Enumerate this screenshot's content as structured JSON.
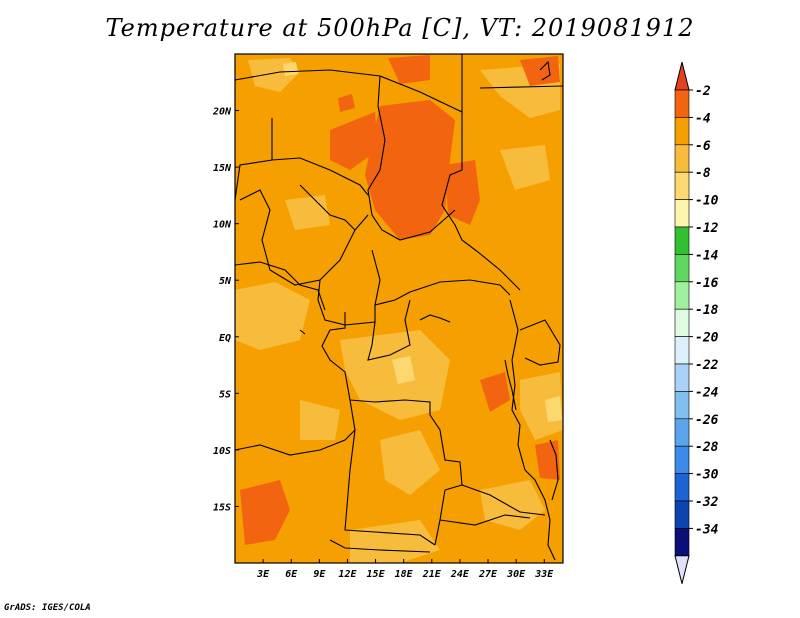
{
  "title": "Temperature at 500hPa [C], VT: 2019081912",
  "credit": "GrADS: IGES/COLA",
  "map": {
    "lon_range": [
      0,
      35
    ],
    "lat_range": [
      -20,
      25
    ],
    "lon_ticks": [
      {
        "value": 3,
        "label": "3E"
      },
      {
        "value": 6,
        "label": "6E"
      },
      {
        "value": 9,
        "label": "9E"
      },
      {
        "value": 12,
        "label": "12E"
      },
      {
        "value": 15,
        "label": "15E"
      },
      {
        "value": 18,
        "label": "18E"
      },
      {
        "value": 21,
        "label": "21E"
      },
      {
        "value": 24,
        "label": "24E"
      },
      {
        "value": 27,
        "label": "27E"
      },
      {
        "value": 30,
        "label": "30E"
      },
      {
        "value": 33,
        "label": "33E"
      }
    ],
    "lat_ticks": [
      {
        "value": 20,
        "label": "20N"
      },
      {
        "value": 15,
        "label": "15N"
      },
      {
        "value": 10,
        "label": "10N"
      },
      {
        "value": 5,
        "label": "5N"
      },
      {
        "value": 0,
        "label": "EQ"
      },
      {
        "value": -5,
        "label": "5S"
      },
      {
        "value": -10,
        "label": "10S"
      },
      {
        "value": -15,
        "label": "15S"
      }
    ],
    "background_color": "#f5a000"
  },
  "colorbar": {
    "labels": [
      "-2",
      "-4",
      "-6",
      "-8",
      "-10",
      "-12",
      "-14",
      "-16",
      "-18",
      "-20",
      "-22",
      "-24",
      "-26",
      "-28",
      "-30",
      "-32",
      "-34"
    ],
    "top_color": "#e8401c",
    "bottom_color": "#e0e0f8",
    "colors": [
      "#f26410",
      "#f5a000",
      "#f8bc3c",
      "#fcd870",
      "#fff4ac",
      "#30c030",
      "#60d860",
      "#a0f0a0",
      "#e0fce0",
      "#dcf0fc",
      "#aad2f8",
      "#82bef0",
      "#5aa4ec",
      "#3a8ce8",
      "#1c64d4",
      "#0c44b0",
      "#0a1078"
    ]
  },
  "regions": [
    {
      "label": "",
      "color": "#f26410",
      "level": -4
    }
  ]
}
